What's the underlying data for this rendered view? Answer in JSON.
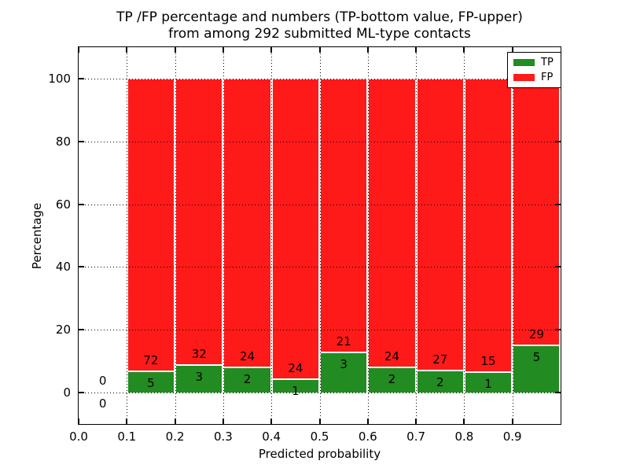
{
  "chart_data": {
    "type": "bar",
    "stacked": true,
    "title_line1": "TP /FP percentage and numbers (TP-bottom value, FP-upper)",
    "title_line2": "from among 292 submitted ML-type contacts",
    "xlabel": "Predicted probability",
    "ylabel": "Percentage",
    "xlim": [
      0,
      1
    ],
    "ylim": [
      -10,
      110
    ],
    "x_tick_labels": [
      "0.0",
      "0.1",
      "0.2",
      "0.3",
      "0.4",
      "0.5",
      "0.6",
      "0.7",
      "0.8",
      "0.9"
    ],
    "y_tick_values": [
      0,
      20,
      40,
      60,
      80,
      100
    ],
    "grid": "dotted",
    "bin_width": 0.1,
    "total_contacts": 292,
    "legend": {
      "position": "upper-right",
      "entries": [
        {
          "label": "TP",
          "color": "#228B22"
        },
        {
          "label": "FP",
          "color": "#FF1A1A"
        }
      ]
    },
    "bins": [
      {
        "x_start": 0.0,
        "tp_count": 0,
        "fp_count": 0
      },
      {
        "x_start": 0.1,
        "tp_count": 5,
        "fp_count": 72
      },
      {
        "x_start": 0.2,
        "tp_count": 3,
        "fp_count": 32
      },
      {
        "x_start": 0.3,
        "tp_count": 2,
        "fp_count": 24
      },
      {
        "x_start": 0.4,
        "tp_count": 1,
        "fp_count": 24
      },
      {
        "x_start": 0.5,
        "tp_count": 3,
        "fp_count": 21
      },
      {
        "x_start": 0.6,
        "tp_count": 2,
        "fp_count": 24
      },
      {
        "x_start": 0.7,
        "tp_count": 2,
        "fp_count": 27
      },
      {
        "x_start": 0.8,
        "tp_count": 1,
        "fp_count": 15
      },
      {
        "x_start": 0.9,
        "tp_count": 5,
        "fp_count": 29
      }
    ],
    "colors": {
      "tp": "#228B22",
      "fp": "#FF1A1A",
      "bar_edge": "#FFFFFF",
      "grid": "#000000",
      "frame": "#000000",
      "background": "#FFFFFF"
    }
  }
}
